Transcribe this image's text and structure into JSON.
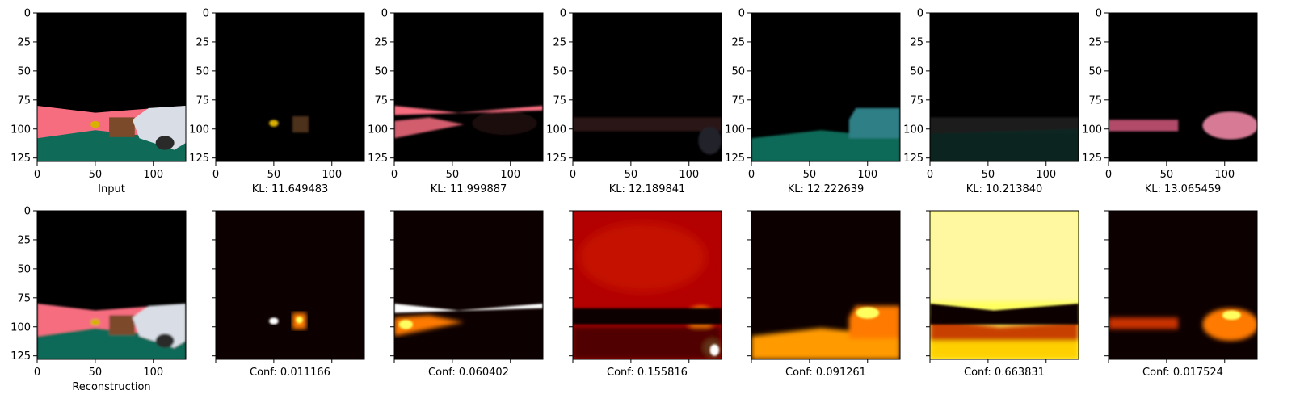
{
  "chart_data": {
    "type": "heatmap",
    "image_size": [
      128,
      128
    ],
    "axis": {
      "x_ticks": [
        0,
        50,
        100
      ],
      "y_ticks": [
        0,
        25,
        50,
        75,
        100,
        125
      ],
      "xlim": [
        0,
        128
      ],
      "ylim": [
        128,
        0
      ]
    },
    "rows": [
      {
        "name": "components",
        "panels": [
          {
            "label": "Input",
            "style": "scene",
            "ticklabels_x": true,
            "ticklabels_y": true
          },
          {
            "label": "KL: 11.649483",
            "style": "component",
            "ticklabels_x": true,
            "ticklabels_y": true
          },
          {
            "label": "KL: 11.999887",
            "style": "component",
            "ticklabels_x": true,
            "ticklabels_y": true
          },
          {
            "label": "KL: 12.189841",
            "style": "component",
            "ticklabels_x": true,
            "ticklabels_y": true
          },
          {
            "label": "KL: 12.222639",
            "style": "component",
            "ticklabels_x": true,
            "ticklabels_y": true
          },
          {
            "label": "KL: 10.213840",
            "style": "component",
            "ticklabels_x": true,
            "ticklabels_y": true
          },
          {
            "label": "KL: 13.065459",
            "style": "component",
            "ticklabels_x": true,
            "ticklabels_y": true
          }
        ]
      },
      {
        "name": "reconstruction-and-confidence",
        "panels": [
          {
            "label": "Reconstruction",
            "style": "scene-blurred",
            "ticklabels_x": true,
            "ticklabels_y": true
          },
          {
            "label": "Conf: 0.011166",
            "style": "conf",
            "ticklabels_x": false,
            "ticklabels_y": false
          },
          {
            "label": "Conf: 0.060402",
            "style": "conf",
            "ticklabels_x": false,
            "ticklabels_y": false
          },
          {
            "label": "Conf: 0.155816",
            "style": "conf",
            "ticklabels_x": false,
            "ticklabels_y": false
          },
          {
            "label": "Conf: 0.091261",
            "style": "conf",
            "ticklabels_x": false,
            "ticklabels_y": false
          },
          {
            "label": "Conf: 0.663831",
            "style": "conf",
            "ticklabels_x": false,
            "ticklabels_y": false
          },
          {
            "label": "Conf: 0.017524",
            "style": "conf",
            "ticklabels_x": false,
            "ticklabels_y": false
          }
        ]
      }
    ],
    "colormap": "hot",
    "colors": {
      "floor_pink": "#f76d80",
      "ground_green": "#0f6b58",
      "car_white": "#d9dee6",
      "box_brown": "#7b4a2b",
      "hydrant_yellow": "#d9b000",
      "hot_dark": "#0d0000",
      "hot_red": "#b30000",
      "hot_orange": "#ff7a00",
      "hot_yellow": "#ffff60",
      "hot_white": "#ffffff"
    }
  }
}
